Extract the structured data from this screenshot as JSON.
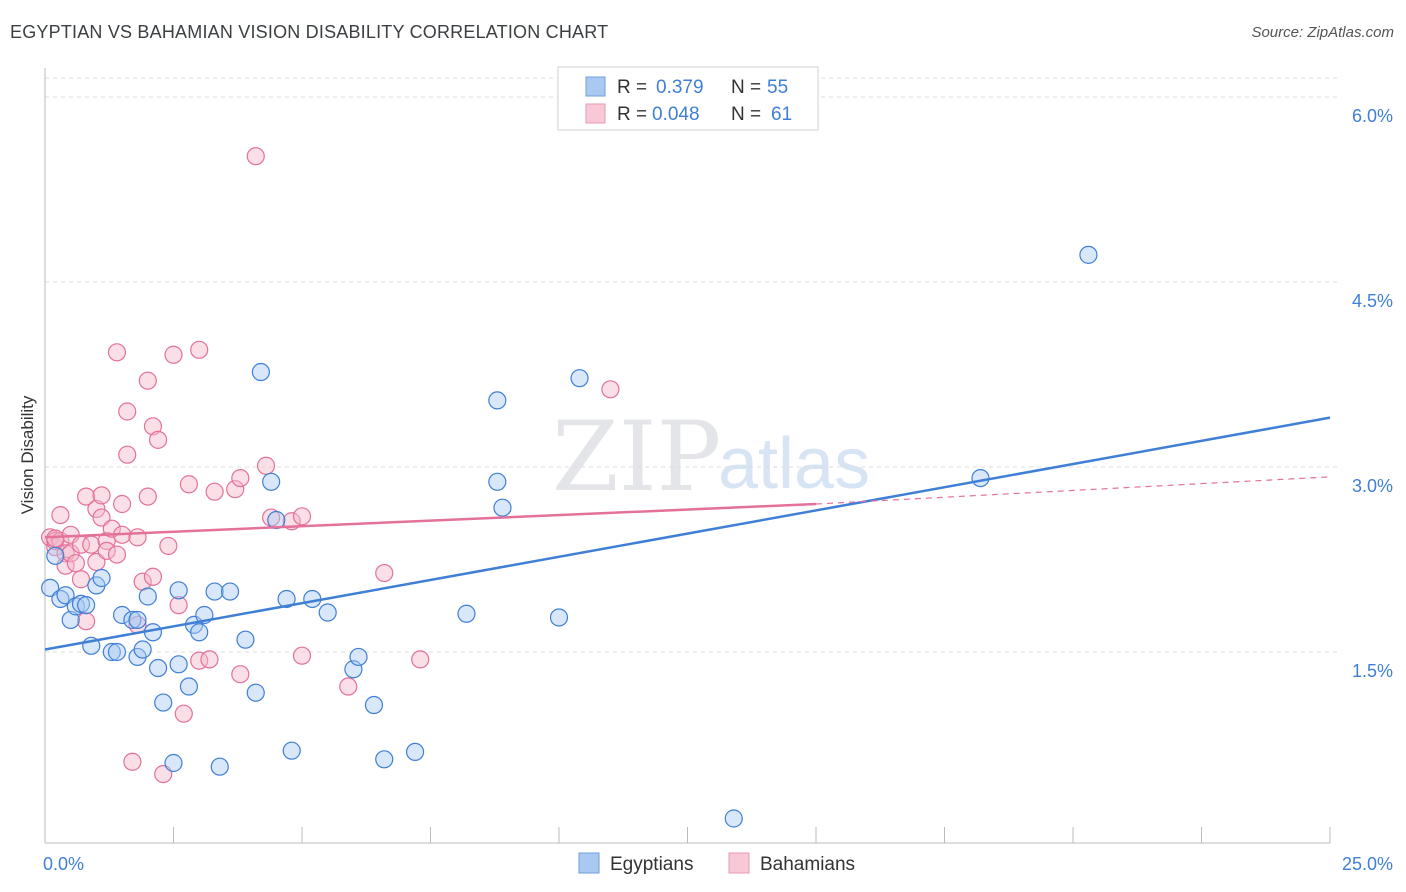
{
  "title": "EGYPTIAN VS BAHAMIAN VISION DISABILITY CORRELATION CHART",
  "source": "Source: ZipAtlas.com",
  "watermark": {
    "zip": "ZIP",
    "atlas": "atlas"
  },
  "colors": {
    "blue": "#3f7fd6",
    "blue_fill": "#a9c9f1",
    "pink": "#e3719a",
    "pink_fill": "#f5b7ca",
    "grid": "#dddddd"
  },
  "legend": {
    "r_label": "R =",
    "n_label": "N =",
    "rows": [
      {
        "r": "0.379",
        "n": "55"
      },
      {
        "r": "0.048",
        "n": "61"
      }
    ]
  },
  "chart_data": {
    "type": "scatter",
    "title": "EGYPTIAN VS BAHAMIAN VISION DISABILITY CORRELATION CHART",
    "xlabel": "",
    "ylabel": "Vision Disability",
    "xlim": [
      0,
      25
    ],
    "ylim": [
      0,
      6.3
    ],
    "x_tick_labels": [
      "0.0%",
      "25.0%"
    ],
    "y_ticks": [
      1.5,
      3.0,
      4.5,
      6.0
    ],
    "y_tick_labels": [
      "1.5%",
      "3.0%",
      "4.5%",
      "6.0%"
    ],
    "grid": true,
    "bottom_legend": [
      "Egyptians",
      "Bahamians"
    ],
    "series": [
      {
        "name": "Egyptians",
        "trend": {
          "x0": 0,
          "y0": 1.52,
          "x1": 25,
          "y1": 3.4
        },
        "points": [
          [
            0.1,
            2.02
          ],
          [
            0.3,
            1.93
          ],
          [
            0.4,
            1.96
          ],
          [
            0.5,
            1.76
          ],
          [
            0.6,
            1.87
          ],
          [
            0.7,
            1.89
          ],
          [
            0.8,
            1.88
          ],
          [
            0.9,
            1.55
          ],
          [
            1.0,
            2.04
          ],
          [
            1.1,
            2.1
          ],
          [
            1.3,
            1.5
          ],
          [
            1.4,
            1.5
          ],
          [
            1.5,
            1.8
          ],
          [
            1.7,
            1.76
          ],
          [
            1.8,
            1.76
          ],
          [
            1.8,
            1.46
          ],
          [
            1.9,
            1.52
          ],
          [
            2.0,
            1.95
          ],
          [
            2.1,
            1.66
          ],
          [
            2.2,
            1.37
          ],
          [
            2.3,
            1.09
          ],
          [
            2.5,
            0.6
          ],
          [
            2.6,
            2.0
          ],
          [
            2.6,
            1.4
          ],
          [
            2.8,
            1.22
          ],
          [
            2.9,
            1.72
          ],
          [
            3.0,
            1.66
          ],
          [
            3.1,
            1.8
          ],
          [
            3.3,
            1.99
          ],
          [
            3.4,
            0.57
          ],
          [
            3.6,
            1.99
          ],
          [
            3.9,
            1.6
          ],
          [
            4.1,
            1.17
          ],
          [
            4.2,
            3.77
          ],
          [
            4.4,
            2.88
          ],
          [
            4.5,
            2.57
          ],
          [
            4.7,
            1.93
          ],
          [
            4.8,
            0.7
          ],
          [
            5.2,
            1.93
          ],
          [
            5.5,
            1.82
          ],
          [
            6.0,
            1.36
          ],
          [
            6.1,
            1.46
          ],
          [
            6.4,
            1.07
          ],
          [
            6.6,
            0.63
          ],
          [
            7.2,
            0.69
          ],
          [
            8.2,
            1.81
          ],
          [
            8.8,
            3.54
          ],
          [
            8.8,
            2.88
          ],
          [
            8.9,
            2.67
          ],
          [
            10.0,
            1.78
          ],
          [
            10.4,
            3.72
          ],
          [
            13.4,
            0.15
          ],
          [
            18.2,
            2.91
          ],
          [
            20.3,
            4.72
          ],
          [
            0.2,
            2.28
          ]
        ]
      },
      {
        "name": "Bahamians",
        "trend": {
          "x0": 0,
          "y0": 2.43,
          "x1": 15,
          "y1": 2.7
        },
        "trend_extension": {
          "x0": 15,
          "y0": 2.7,
          "x1": 25,
          "y1": 2.92
        },
        "points": [
          [
            0.1,
            2.43
          ],
          [
            0.2,
            2.35
          ],
          [
            0.2,
            2.4
          ],
          [
            0.3,
            2.4
          ],
          [
            0.3,
            2.61
          ],
          [
            0.4,
            2.3
          ],
          [
            0.4,
            2.2
          ],
          [
            0.5,
            2.45
          ],
          [
            0.5,
            2.3
          ],
          [
            0.6,
            2.22
          ],
          [
            0.7,
            2.09
          ],
          [
            0.7,
            2.37
          ],
          [
            0.8,
            2.76
          ],
          [
            0.8,
            1.75
          ],
          [
            0.9,
            2.37
          ],
          [
            1.0,
            2.23
          ],
          [
            1.0,
            2.66
          ],
          [
            1.1,
            2.77
          ],
          [
            1.1,
            2.59
          ],
          [
            1.2,
            2.4
          ],
          [
            1.2,
            2.32
          ],
          [
            1.3,
            2.5
          ],
          [
            1.4,
            3.93
          ],
          [
            1.4,
            2.29
          ],
          [
            1.5,
            2.45
          ],
          [
            1.5,
            2.7
          ],
          [
            1.6,
            3.1
          ],
          [
            1.6,
            3.45
          ],
          [
            1.7,
            0.61
          ],
          [
            1.8,
            2.43
          ],
          [
            1.8,
            1.72
          ],
          [
            1.9,
            2.07
          ],
          [
            2.0,
            2.76
          ],
          [
            2.0,
            3.7
          ],
          [
            2.1,
            2.11
          ],
          [
            2.1,
            3.33
          ],
          [
            2.2,
            3.22
          ],
          [
            2.3,
            0.51
          ],
          [
            2.4,
            2.36
          ],
          [
            2.5,
            3.91
          ],
          [
            2.6,
            1.88
          ],
          [
            2.7,
            1.0
          ],
          [
            2.8,
            2.86
          ],
          [
            3.0,
            3.95
          ],
          [
            3.0,
            1.43
          ],
          [
            3.2,
            1.44
          ],
          [
            3.3,
            2.8
          ],
          [
            3.7,
            2.82
          ],
          [
            3.8,
            1.32
          ],
          [
            3.8,
            2.91
          ],
          [
            4.1,
            5.52
          ],
          [
            4.3,
            3.01
          ],
          [
            4.4,
            2.59
          ],
          [
            4.8,
            2.56
          ],
          [
            5.0,
            2.6
          ],
          [
            5.0,
            1.47
          ],
          [
            5.9,
            1.22
          ],
          [
            6.6,
            2.14
          ],
          [
            7.3,
            1.44
          ],
          [
            11.0,
            3.63
          ],
          [
            0.2,
            2.42
          ]
        ]
      }
    ]
  }
}
